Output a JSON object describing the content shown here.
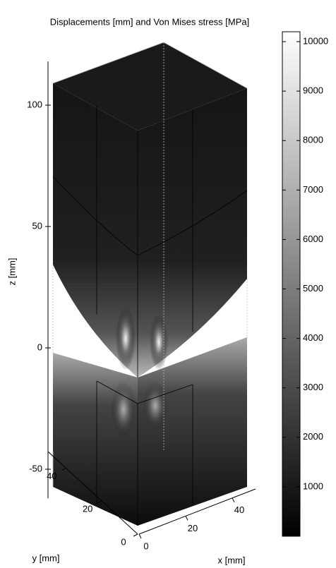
{
  "chart_data": {
    "type": "surface3d",
    "title": "Displacements [mm] and Von Mises stress [MPa]",
    "zlabel": "z [mm]",
    "xlabel": "x [mm]",
    "ylabel": "y [mm]",
    "zlim": [
      -62,
      118
    ],
    "zticks": [
      -50,
      0,
      50,
      100
    ],
    "xlim": [
      0,
      50
    ],
    "xticks": [
      0,
      20,
      40
    ],
    "ylim": [
      0,
      50
    ],
    "yticks": [
      0,
      20,
      40
    ],
    "colorbar": {
      "clim": [
        0,
        10200
      ],
      "ticks": [
        1000,
        2000,
        3000,
        4000,
        5000,
        6000,
        7000,
        8000,
        9000,
        10000
      ]
    },
    "colormap": [
      "#000000",
      "#ffffff"
    ]
  }
}
